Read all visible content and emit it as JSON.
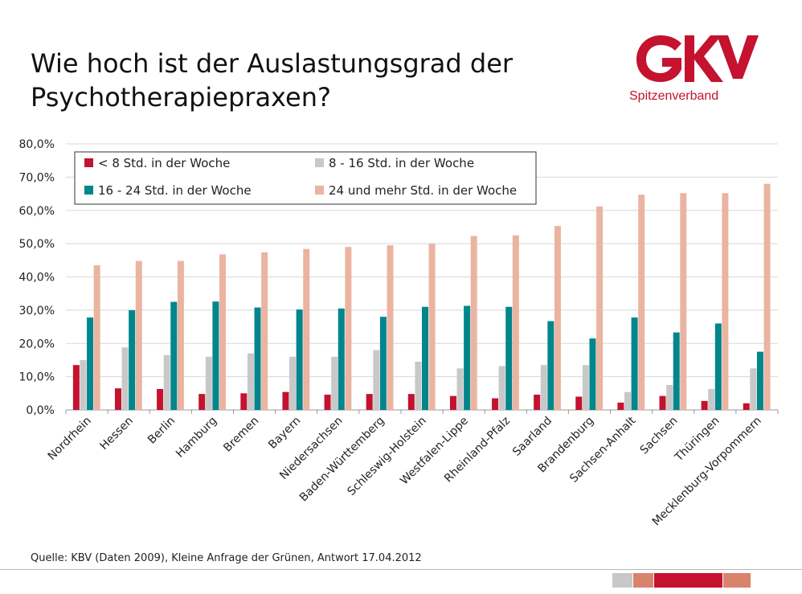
{
  "header": {
    "title": "Wie hoch ist der Auslastungsgrad der\nPsychotherapiepraxen?",
    "logo_name": "gkv-logo",
    "logo_text": "Spitzenverband",
    "brand_color": "#c4122f"
  },
  "source": "Quelle: KBV (Daten 2009), Kleine Anfrage der Grünen, Antwort 17.04.2012",
  "footer": {
    "colors": [
      "#c8c8c8",
      "#d9836c",
      "#c4122f",
      "#d9836c"
    ]
  },
  "chart_data": {
    "type": "bar",
    "title": "",
    "xlabel": "",
    "ylabel": "",
    "ylim": [
      0,
      80
    ],
    "yticks": [
      0,
      10,
      20,
      30,
      40,
      50,
      60,
      70,
      80
    ],
    "ytick_labels": [
      "0,0%",
      "10,0%",
      "20,0%",
      "30,0%",
      "40,0%",
      "50,0%",
      "60,0%",
      "70,0%",
      "80,0%"
    ],
    "grid": true,
    "legend_position": "top-left",
    "categories": [
      "Nordrhein",
      "Hessen",
      "Berlin",
      "Hamburg",
      "Bremen",
      "Bayern",
      "Niedersachsen",
      "Baden-Württemberg",
      "Schleswig-Holstein",
      "Westfalen-Lippe",
      "Rheinland-Pfalz",
      "Saarland",
      "Brandenburg",
      "Sachsen-Anhalt",
      "Sachsen",
      "Thüringen",
      "Mecklenburg-Vorpommern"
    ],
    "series": [
      {
        "name": "< 8 Std. in der Woche",
        "color": "#c4122f",
        "values": [
          13.5,
          6.5,
          6.3,
          4.8,
          5.0,
          5.4,
          4.6,
          4.8,
          4.8,
          4.2,
          3.5,
          4.6,
          4.0,
          2.2,
          4.2,
          2.7,
          2.0
        ]
      },
      {
        "name": "8 - 16 Std. in der Woche",
        "color": "#c8c8c8",
        "values": [
          15.0,
          18.8,
          16.5,
          16.0,
          17.0,
          16.0,
          16.0,
          18.0,
          14.5,
          12.5,
          13.2,
          13.5,
          13.5,
          5.4,
          7.5,
          6.3,
          12.5
        ]
      },
      {
        "name": "16 - 24 Std. in der Woche",
        "color": "#00868b",
        "values": [
          27.8,
          30.0,
          32.5,
          32.6,
          30.8,
          30.2,
          30.5,
          28.0,
          31.0,
          31.3,
          31.0,
          26.7,
          21.5,
          27.8,
          23.3,
          26.0,
          17.5
        ]
      },
      {
        "name": "24 und mehr Std. in der Woche",
        "color": "#eab4a1",
        "values": [
          43.5,
          44.8,
          44.8,
          46.8,
          47.4,
          48.4,
          49.0,
          49.5,
          50.0,
          52.3,
          52.5,
          55.3,
          61.2,
          64.7,
          65.2,
          65.2,
          68.0
        ]
      }
    ]
  }
}
